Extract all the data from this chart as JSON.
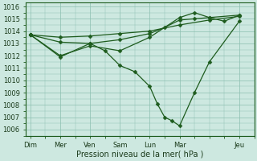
{
  "background_color": "#cde8e0",
  "grid_color": "#8bbfb0",
  "line_color": "#1e5c1e",
  "xlabel": "Pression niveau de la mer( hPa )",
  "ylim": [
    1005.5,
    1016.3
  ],
  "yticks": [
    1006,
    1007,
    1008,
    1009,
    1010,
    1011,
    1012,
    1013,
    1014,
    1015,
    1016
  ],
  "x_labels": [
    "Dim",
    "Mer",
    "Ven",
    "Sam",
    "Lun",
    "Mar",
    "Jeu"
  ],
  "x_tick_pos": [
    0,
    2,
    4,
    6,
    8,
    10,
    14
  ],
  "xlim": [
    -0.3,
    15.0
  ],
  "series": [
    {
      "x": [
        0,
        2,
        4,
        6,
        8,
        10,
        12,
        14
      ],
      "y": [
        1013.7,
        1013.5,
        1013.6,
        1013.8,
        1014.0,
        1014.5,
        1014.9,
        1015.2
      ],
      "marker": "D",
      "markersize": 2.5,
      "lw": 0.9
    },
    {
      "x": [
        0,
        2,
        4,
        5,
        6,
        7,
        8,
        8.5,
        9,
        9.5,
        10,
        11,
        12,
        14
      ],
      "y": [
        1013.7,
        1011.9,
        1013.0,
        1012.4,
        1011.2,
        1010.7,
        1009.5,
        1008.1,
        1007.0,
        1006.7,
        1006.3,
        1009.0,
        1011.5,
        1014.8
      ],
      "marker": "D",
      "markersize": 2.5,
      "lw": 0.9
    },
    {
      "x": [
        0,
        2,
        4,
        6,
        8,
        9,
        10,
        11,
        12,
        14
      ],
      "y": [
        1013.7,
        1013.1,
        1013.0,
        1013.3,
        1013.8,
        1014.3,
        1014.9,
        1015.0,
        1015.1,
        1015.3
      ],
      "marker": "D",
      "markersize": 2.5,
      "lw": 0.9
    },
    {
      "x": [
        0,
        2,
        4,
        6,
        8,
        10,
        11,
        12,
        13,
        14
      ],
      "y": [
        1013.7,
        1012.0,
        1012.8,
        1012.4,
        1013.5,
        1015.1,
        1015.5,
        1015.1,
        1014.8,
        1015.3
      ],
      "marker": "D",
      "markersize": 2.5,
      "lw": 0.9
    }
  ]
}
